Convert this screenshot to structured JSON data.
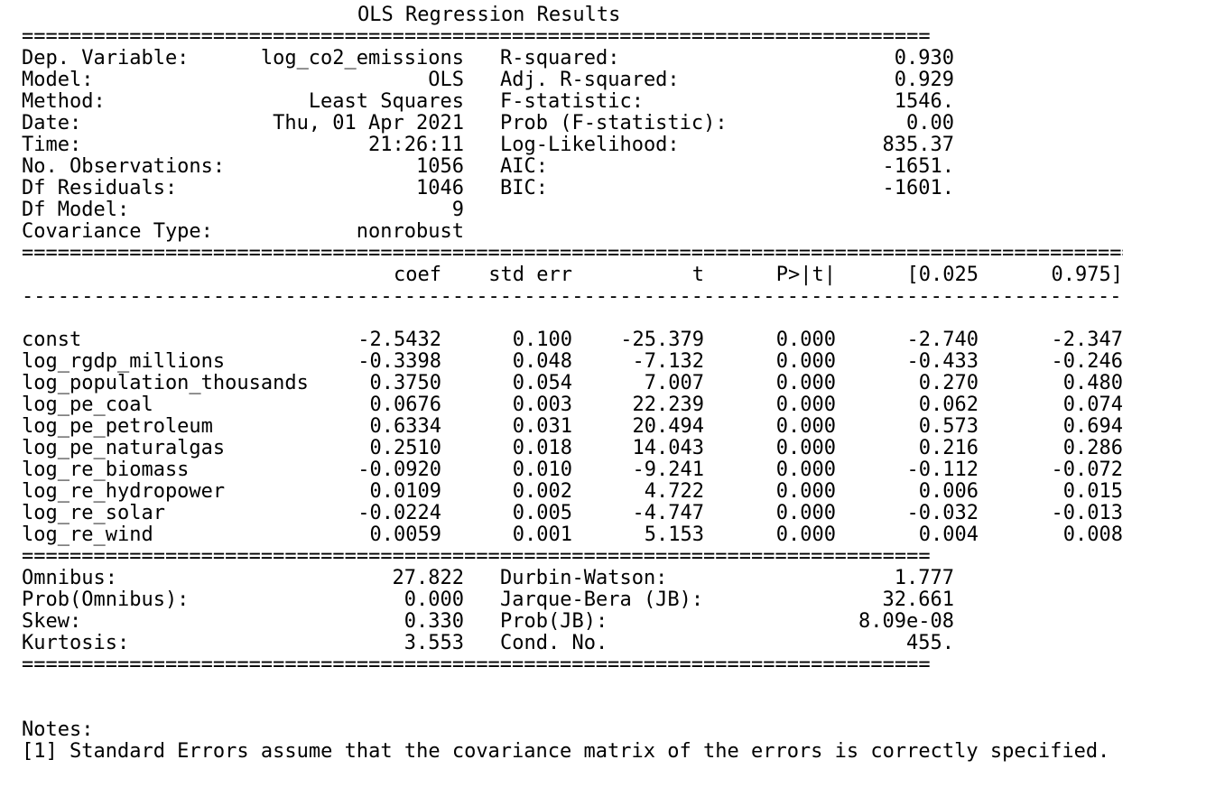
{
  "title": "OLS Regression Results",
  "rules": {
    "short_double": "============================================================================",
    "long_double": "=============================================================================================",
    "long_dash": "---------------------------------------------------------------------------------------------"
  },
  "summary_rows": [
    {
      "l_label": "Dep. Variable:",
      "l_value": "log_co2_emissions",
      "r_label": "R-squared:",
      "r_value": "0.930"
    },
    {
      "l_label": "Model:",
      "l_value": "OLS",
      "r_label": "Adj. R-squared:",
      "r_value": "0.929"
    },
    {
      "l_label": "Method:",
      "l_value": "Least Squares",
      "r_label": "F-statistic:",
      "r_value": "1546."
    },
    {
      "l_label": "Date:",
      "l_value": "Thu, 01 Apr 2021",
      "r_label": "Prob (F-statistic):",
      "r_value": "0.00"
    },
    {
      "l_label": "Time:",
      "l_value": "21:26:11",
      "r_label": "Log-Likelihood:",
      "r_value": "835.37"
    },
    {
      "l_label": "No. Observations:",
      "l_value": "1056",
      "r_label": "AIC:",
      "r_value": "-1651."
    },
    {
      "l_label": "Df Residuals:",
      "l_value": "1046",
      "r_label": "BIC:",
      "r_value": "-1601."
    },
    {
      "l_label": "Df Model:",
      "l_value": "9",
      "r_label": "",
      "r_value": ""
    },
    {
      "l_label": "Covariance Type:",
      "l_value": "nonrobust",
      "r_label": "",
      "r_value": ""
    }
  ],
  "coef_headers": [
    "coef",
    "std err",
    "t",
    "P>|t|",
    "[0.025",
    "0.975]"
  ],
  "coef_rows": [
    {
      "name": "const",
      "coef": "-2.5432",
      "std_err": "0.100",
      "t": "-25.379",
      "p": "0.000",
      "ci_low": "-2.740",
      "ci_high": "-2.347"
    },
    {
      "name": "log_rgdp_millions",
      "coef": "-0.3398",
      "std_err": "0.048",
      "t": "-7.132",
      "p": "0.000",
      "ci_low": "-0.433",
      "ci_high": "-0.246"
    },
    {
      "name": "log_population_thousands",
      "coef": "0.3750",
      "std_err": "0.054",
      "t": "7.007",
      "p": "0.000",
      "ci_low": "0.270",
      "ci_high": "0.480"
    },
    {
      "name": "log_pe_coal",
      "coef": "0.0676",
      "std_err": "0.003",
      "t": "22.239",
      "p": "0.000",
      "ci_low": "0.062",
      "ci_high": "0.074"
    },
    {
      "name": "log_pe_petroleum",
      "coef": "0.6334",
      "std_err": "0.031",
      "t": "20.494",
      "p": "0.000",
      "ci_low": "0.573",
      "ci_high": "0.694"
    },
    {
      "name": "log_pe_naturalgas",
      "coef": "0.2510",
      "std_err": "0.018",
      "t": "14.043",
      "p": "0.000",
      "ci_low": "0.216",
      "ci_high": "0.286"
    },
    {
      "name": "log_re_biomass",
      "coef": "-0.0920",
      "std_err": "0.010",
      "t": "-9.241",
      "p": "0.000",
      "ci_low": "-0.112",
      "ci_high": "-0.072"
    },
    {
      "name": "log_re_hydropower",
      "coef": "0.0109",
      "std_err": "0.002",
      "t": "4.722",
      "p": "0.000",
      "ci_low": "0.006",
      "ci_high": "0.015"
    },
    {
      "name": "log_re_solar",
      "coef": "-0.0224",
      "std_err": "0.005",
      "t": "-4.747",
      "p": "0.000",
      "ci_low": "-0.032",
      "ci_high": "-0.013"
    },
    {
      "name": "log_re_wind",
      "coef": "0.0059",
      "std_err": "0.001",
      "t": "5.153",
      "p": "0.000",
      "ci_low": "0.004",
      "ci_high": "0.008"
    }
  ],
  "diag_rows": [
    {
      "l_label": "Omnibus:",
      "l_value": "27.822",
      "r_label": "Durbin-Watson:",
      "r_value": "1.777"
    },
    {
      "l_label": "Prob(Omnibus):",
      "l_value": "0.000",
      "r_label": "Jarque-Bera (JB):",
      "r_value": "32.661"
    },
    {
      "l_label": "Skew:",
      "l_value": "0.330",
      "r_label": "Prob(JB):",
      "r_value": "8.09e-08"
    },
    {
      "l_label": "Kurtosis:",
      "l_value": "3.553",
      "r_label": "Cond. No.",
      "r_value": "455."
    }
  ],
  "notes": {
    "heading": "Notes:",
    "items": [
      "[1] Standard Errors assume that the covariance matrix of the errors is correctly specified."
    ]
  }
}
